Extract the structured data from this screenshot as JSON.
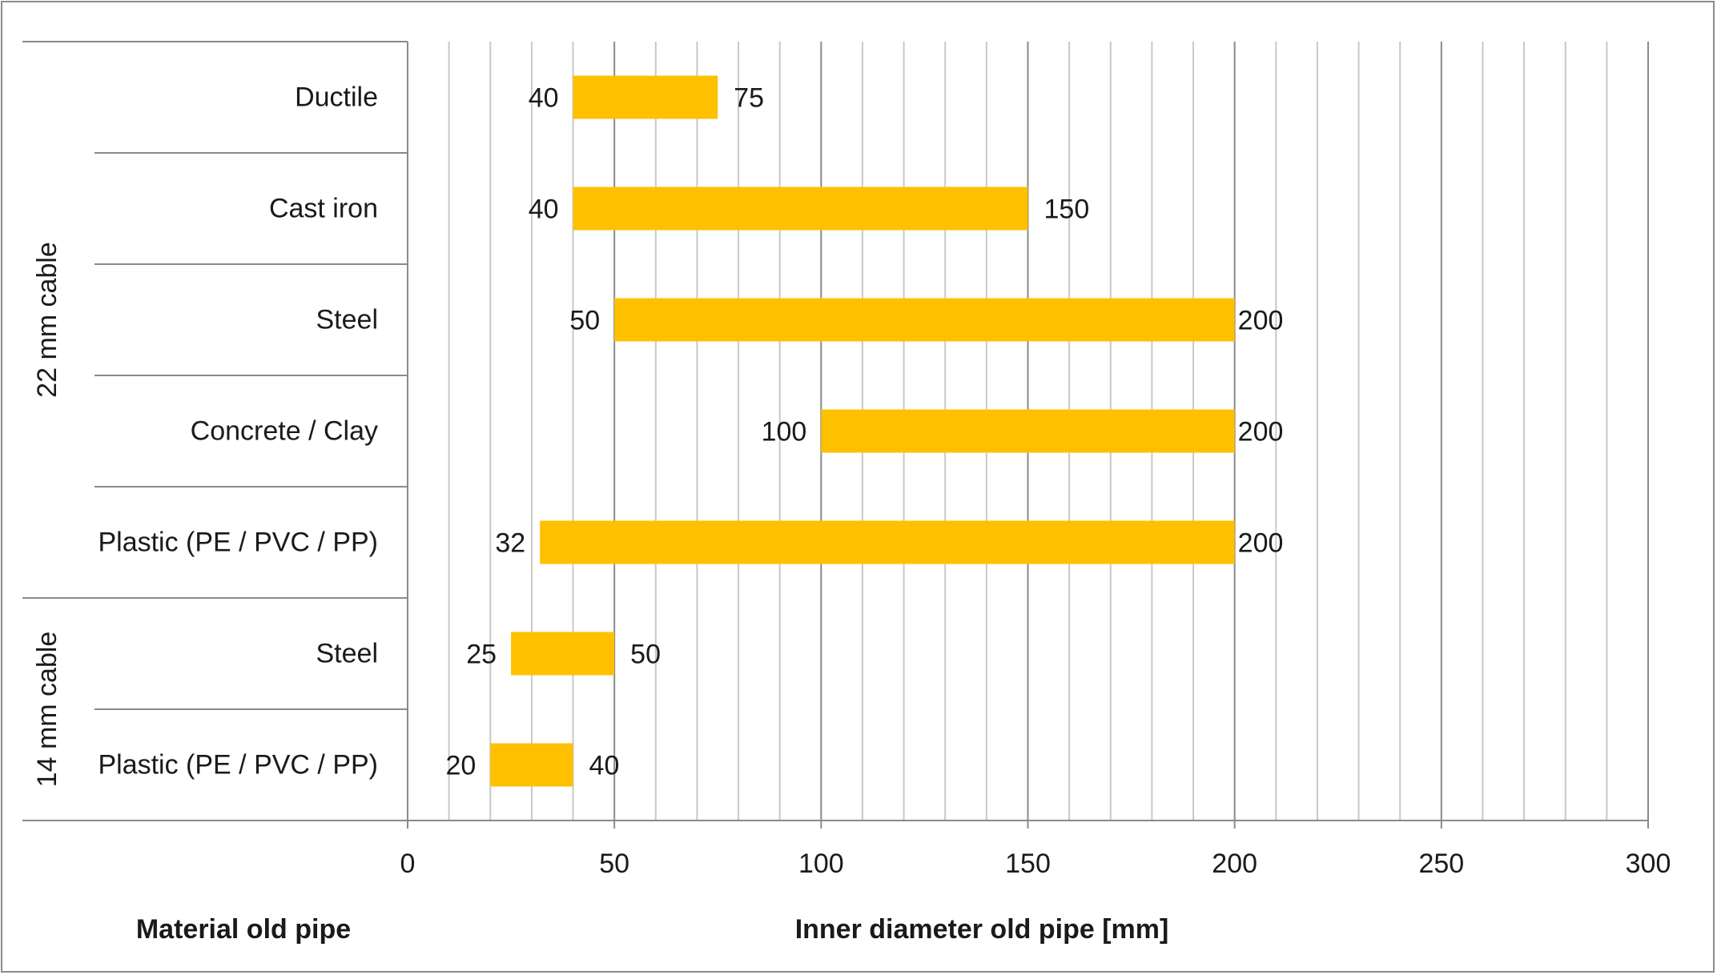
{
  "chart_data": {
    "type": "bar",
    "subtype": "floating-horizontal-range",
    "xlabel": "Inner diameter old pipe [mm]",
    "ylabel": "Material old pipe",
    "xlim": [
      0,
      300
    ],
    "x_ticks": [
      0,
      50,
      100,
      150,
      200,
      250,
      300
    ],
    "minor_grid_step": 10,
    "grid": true,
    "bar_color": "#FFC000",
    "groups": [
      {
        "label": "22 mm cable",
        "categories": [
          "Ductile",
          "Cast iron",
          "Steel",
          "Concrete / Clay",
          "Plastic (PE / PVC / PP)"
        ]
      },
      {
        "label": "14 mm cable",
        "categories": [
          "Steel",
          "Plastic (PE / PVC / PP)"
        ]
      }
    ],
    "ranges": [
      {
        "category": "Ductile",
        "group": "22 mm cable",
        "min": 40,
        "max": 75
      },
      {
        "category": "Cast iron",
        "group": "22 mm cable",
        "min": 40,
        "max": 150
      },
      {
        "category": "Steel",
        "group": "22 mm cable",
        "min": 50,
        "max": 200
      },
      {
        "category": "Concrete / Clay",
        "group": "22 mm cable",
        "min": 100,
        "max": 200
      },
      {
        "category": "Plastic (PE / PVC / PP)",
        "group": "22 mm cable",
        "min": 32,
        "max": 200
      },
      {
        "category": "Steel",
        "group": "14 mm cable",
        "min": 25,
        "max": 50
      },
      {
        "category": "Plastic (PE / PVC / PP)",
        "group": "14 mm cable",
        "min": 20,
        "max": 40
      }
    ]
  }
}
